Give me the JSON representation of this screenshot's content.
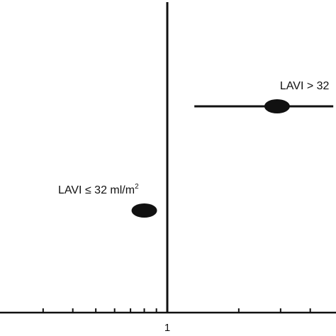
{
  "chart_data": {
    "type": "forest",
    "scale": "log",
    "reference_line": 1,
    "xlim": [
      0.2,
      5
    ],
    "tick_labels": [
      "1"
    ],
    "minor_ticks": [
      0.3,
      0.4,
      0.5,
      0.6,
      0.7,
      0.8,
      0.9,
      2,
      3,
      4
    ],
    "series": [
      {
        "label": "LAVI > 32",
        "estimate": 2.9,
        "ci_low": 1.3,
        "ci_high": 5
      },
      {
        "label": "LAVI ≤ 32 ml/m",
        "label_sup": "2",
        "estimate": 0.8,
        "ci_low": 0.73,
        "ci_high": 0.87
      }
    ],
    "colors": {
      "ink": "#111111"
    }
  }
}
